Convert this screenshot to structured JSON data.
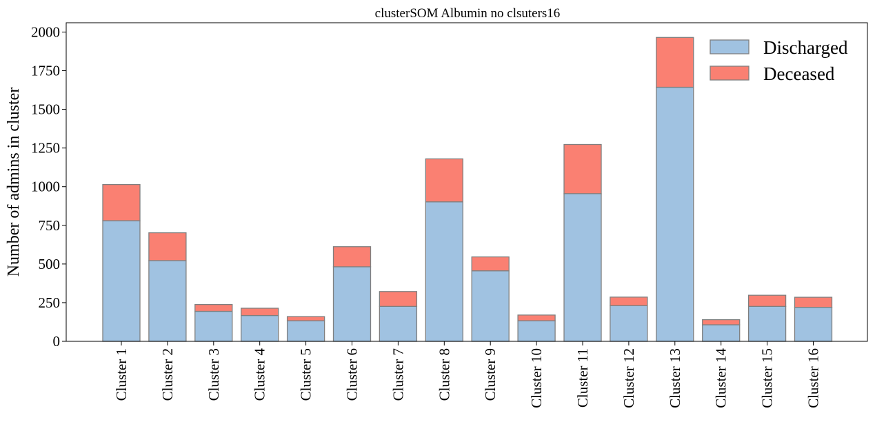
{
  "chart_data": {
    "type": "bar",
    "stacked": true,
    "title": "clusterSOM Albumin no clsuters16",
    "xlabel": "",
    "ylabel": "Number of admins in cluster",
    "ylim": [
      0,
      2060
    ],
    "yticks": [
      0,
      250,
      500,
      750,
      1000,
      1250,
      1500,
      1750,
      2000
    ],
    "categories": [
      "Cluster 1",
      "Cluster 2",
      "Cluster 3",
      "Cluster 4",
      "Cluster 5",
      "Cluster 6",
      "Cluster 7",
      "Cluster 8",
      "Cluster 9",
      "Cluster 10",
      "Cluster 11",
      "Cluster 12",
      "Cluster 13",
      "Cluster 14",
      "Cluster 15",
      "Cluster 16"
    ],
    "series": [
      {
        "name": "Discharged",
        "color": "#a0c2e1",
        "values": [
          780,
          522,
          194,
          167,
          133,
          482,
          226,
          902,
          456,
          133,
          955,
          231,
          1643,
          107,
          226,
          220
        ]
      },
      {
        "name": "Deceased",
        "color": "#fa8072",
        "values": [
          234,
          180,
          44,
          47,
          27,
          130,
          96,
          278,
          90,
          37,
          318,
          55,
          322,
          33,
          72,
          65
        ]
      }
    ],
    "legend_position": "top-right",
    "grid": false,
    "edge_color": "#7f7f7f"
  }
}
